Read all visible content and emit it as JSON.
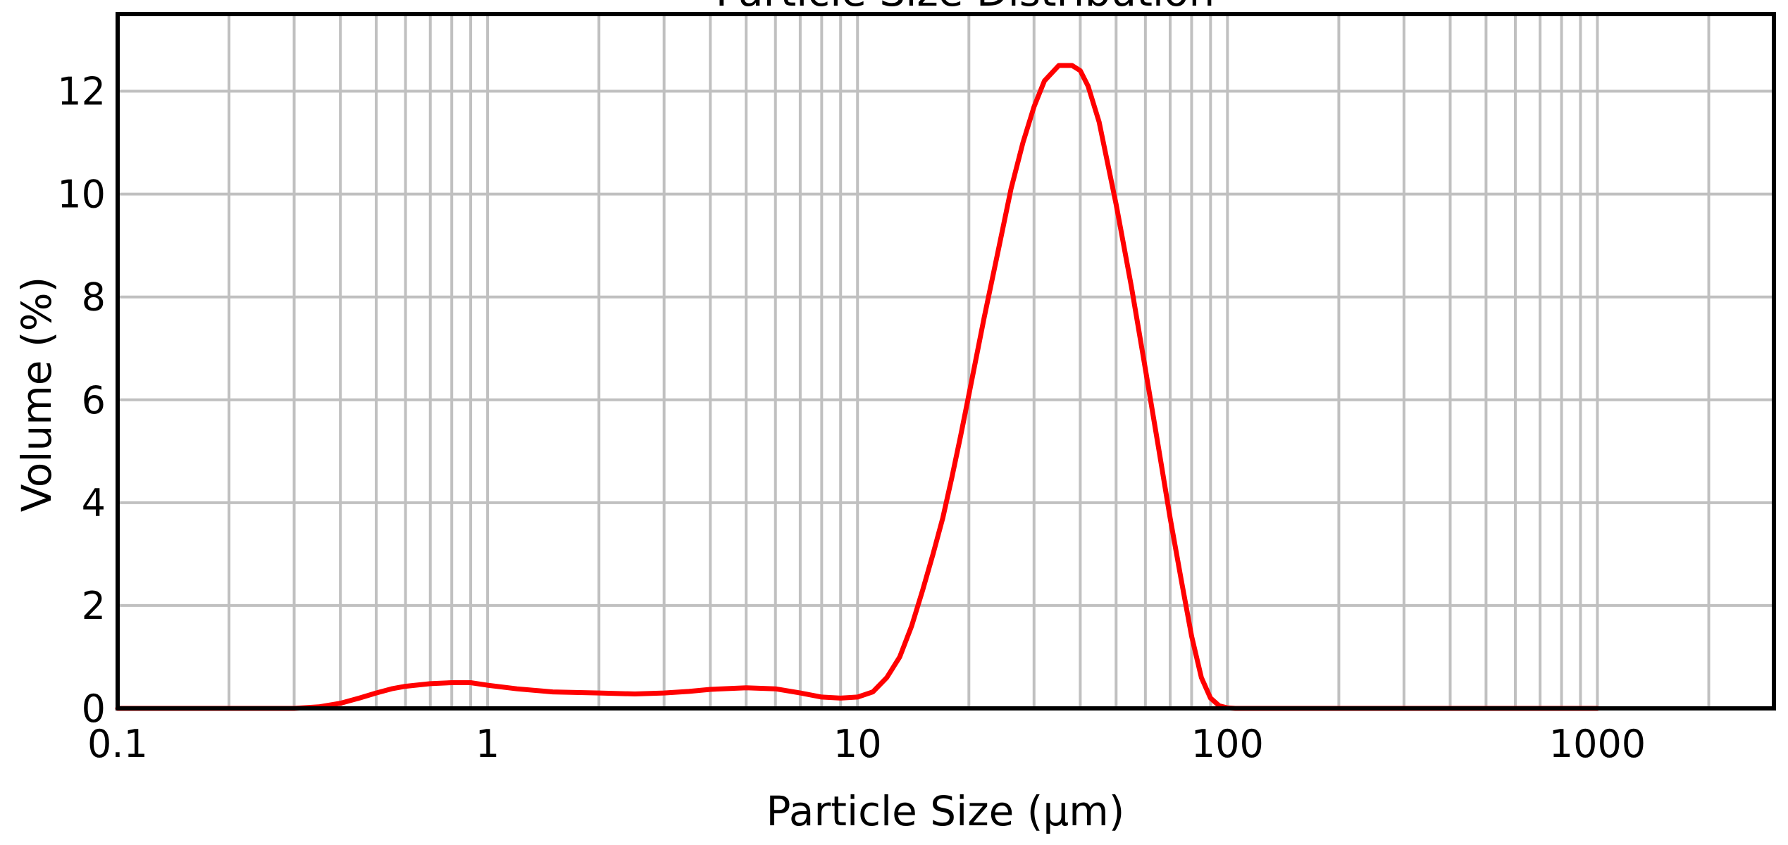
{
  "chart_data": {
    "type": "line",
    "title": "Particle Size Distribution",
    "xlabel": "Particle Size (μm)",
    "ylabel": "Volume (%)",
    "xscale": "log",
    "xlim": [
      0.1,
      3000
    ],
    "ylim": [
      0,
      13.5
    ],
    "grid": true,
    "legend": "none",
    "x_ticks": [
      0.1,
      1,
      10,
      100,
      1000
    ],
    "x_tick_labels": [
      "0.1",
      "1",
      "10",
      "100",
      "1000"
    ],
    "y_ticks": [
      0,
      2,
      4,
      6,
      8,
      10,
      12
    ],
    "y_tick_labels": [
      "0",
      "2",
      "4",
      "6",
      "8",
      "10",
      "12"
    ],
    "colors": {
      "series": "#ff0000",
      "grid": "#c0c0c0",
      "frame": "#000000"
    },
    "series": [
      {
        "x": [
          0.1,
          0.2,
          0.3,
          0.35,
          0.4,
          0.45,
          0.5,
          0.55,
          0.6,
          0.7,
          0.8,
          0.9,
          1.0,
          1.2,
          1.5,
          2.0,
          2.5,
          3.0,
          3.5,
          4.0,
          5.0,
          6.0,
          7.0,
          8.0,
          9.0,
          10.0,
          11.0,
          12.0,
          13.0,
          14.0,
          15.0,
          16.0,
          17.0,
          18.0,
          19.0,
          20.0,
          22.0,
          24.0,
          26.0,
          28.0,
          30.0,
          32.0,
          35.0,
          38.0,
          40.0,
          42.0,
          45.0,
          50.0,
          55.0,
          60.0,
          65.0,
          70.0,
          75.0,
          80.0,
          85.0,
          90.0,
          95.0,
          100.0,
          105.0,
          110.0,
          200.0,
          500.0,
          1000.0
        ],
        "y": [
          0,
          0,
          0,
          0.03,
          0.1,
          0.2,
          0.3,
          0.38,
          0.43,
          0.48,
          0.5,
          0.5,
          0.45,
          0.38,
          0.32,
          0.3,
          0.28,
          0.3,
          0.33,
          0.37,
          0.4,
          0.38,
          0.3,
          0.22,
          0.2,
          0.22,
          0.32,
          0.6,
          1.0,
          1.6,
          2.3,
          3.0,
          3.7,
          4.5,
          5.3,
          6.1,
          7.6,
          8.9,
          10.1,
          11.0,
          11.7,
          12.2,
          12.5,
          12.5,
          12.4,
          12.1,
          11.4,
          9.8,
          8.2,
          6.6,
          5.1,
          3.7,
          2.5,
          1.4,
          0.6,
          0.2,
          0.05,
          0.01,
          0,
          0,
          0,
          0,
          0
        ]
      }
    ]
  }
}
